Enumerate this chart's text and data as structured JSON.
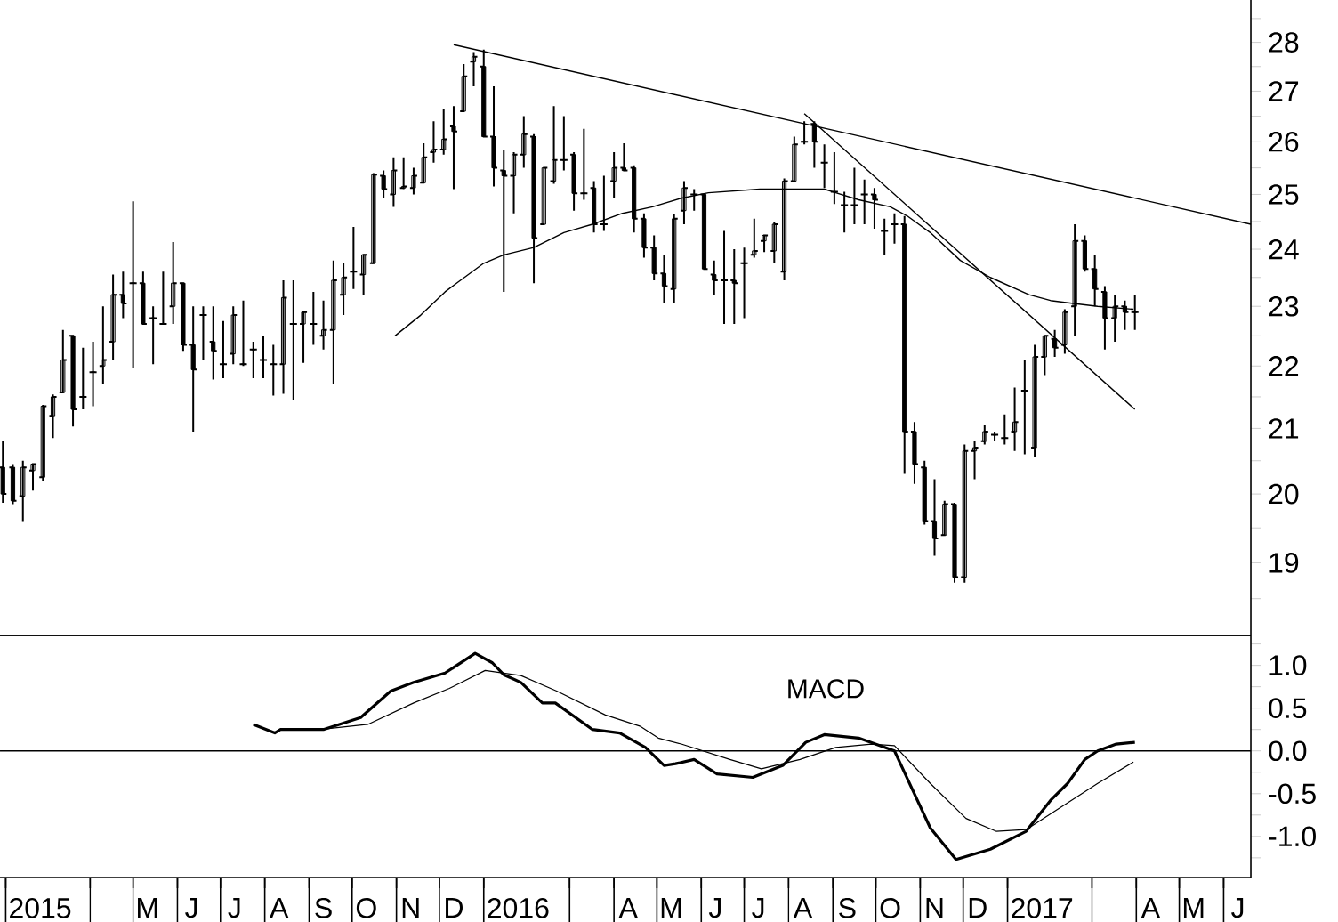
{
  "chart_data": [
    {
      "type": "candlestick",
      "color": "#000000",
      "log": "y",
      "tick_labels": "y",
      "xlim": [
        "2015-01-28",
        "2017-06-20"
      ],
      "ylim": [
        18.0,
        28.9
      ],
      "yticks": [
        {
          "value": 18.5,
          "label": null
        },
        19,
        {
          "value": 19.5,
          "label": null
        },
        20,
        {
          "value": 20.5,
          "label": null
        },
        21,
        {
          "value": 21.5,
          "label": null
        },
        22,
        {
          "value": 22.5,
          "label": null
        },
        23,
        {
          "value": 23.5,
          "label": null
        },
        24,
        {
          "value": 24.5,
          "label": null
        },
        25,
        {
          "value": 25.5,
          "label": null
        },
        26,
        {
          "value": 26.5,
          "label": null
        },
        27,
        {
          "value": 27.5,
          "label": null
        },
        28,
        {
          "value": 28.5,
          "label": null
        }
      ],
      "x": [
        "2015-01-30",
        "2015-02-06",
        "2015-02-13",
        "2015-02-20",
        "2015-02-27",
        "2015-03-06",
        "2015-03-13",
        "2015-03-20",
        "2015-03-27",
        "2015-04-03",
        "2015-04-10",
        "2015-04-17",
        "2015-04-24",
        "2015-05-01",
        "2015-05-08",
        "2015-05-15",
        "2015-05-22",
        "2015-05-29",
        "2015-06-05",
        "2015-06-12",
        "2015-06-19",
        "2015-06-26",
        "2015-07-03",
        "2015-07-10",
        "2015-07-17",
        "2015-07-24",
        "2015-07-31",
        "2015-08-07",
        "2015-08-14",
        "2015-08-21",
        "2015-08-28",
        "2015-09-04",
        "2015-09-11",
        "2015-09-18",
        "2015-09-25",
        "2015-10-02",
        "2015-10-09",
        "2015-10-16",
        "2015-10-23",
        "2015-10-30",
        "2015-11-06",
        "2015-11-13",
        "2015-11-20",
        "2015-11-27",
        "2015-12-04",
        "2015-12-11",
        "2015-12-18",
        "2015-12-25",
        "2016-01-01",
        "2016-01-08",
        "2016-01-15",
        "2016-01-22",
        "2016-01-29",
        "2016-02-05",
        "2016-02-12",
        "2016-02-19",
        "2016-02-26",
        "2016-03-04",
        "2016-03-11",
        "2016-03-18",
        "2016-03-25",
        "2016-04-01",
        "2016-04-08",
        "2016-04-15",
        "2016-04-22",
        "2016-04-29",
        "2016-05-06",
        "2016-05-13",
        "2016-05-20",
        "2016-05-27",
        "2016-06-03",
        "2016-06-10",
        "2016-06-17",
        "2016-06-24",
        "2016-07-01",
        "2016-07-08",
        "2016-07-15",
        "2016-07-22",
        "2016-07-29",
        "2016-08-05",
        "2016-08-12",
        "2016-08-19",
        "2016-08-26",
        "2016-09-02",
        "2016-09-09",
        "2016-09-16",
        "2016-09-23",
        "2016-09-30",
        "2016-10-07",
        "2016-10-14",
        "2016-10-21",
        "2016-10-28",
        "2016-11-04",
        "2016-11-11",
        "2016-11-18",
        "2016-11-25",
        "2016-12-02",
        "2016-12-09",
        "2016-12-16",
        "2016-12-23",
        "2016-12-30",
        "2017-01-06",
        "2017-01-13",
        "2017-01-20",
        "2017-01-27",
        "2017-02-03",
        "2017-02-10",
        "2017-02-17",
        "2017-02-24",
        "2017-03-03",
        "2017-03-10",
        "2017-03-17",
        "2017-03-24",
        "2017-03-31"
      ],
      "ohlc": [
        [
          20.4,
          20.8,
          19.87,
          20.0
        ],
        [
          20.4,
          20.45,
          19.85,
          19.9
        ],
        [
          19.97,
          20.5,
          19.6,
          20.4
        ],
        [
          20.35,
          20.45,
          20.05,
          20.45
        ],
        [
          20.25,
          21.37,
          20.2,
          21.35
        ],
        [
          21.2,
          21.54,
          20.85,
          21.5
        ],
        [
          21.57,
          22.6,
          21.57,
          22.1
        ],
        [
          22.5,
          22.5,
          21.03,
          21.3
        ],
        [
          21.5,
          22.3,
          21.3,
          21.5
        ],
        [
          21.9,
          22.4,
          21.35,
          21.9
        ],
        [
          22.0,
          23.0,
          21.7,
          22.1
        ],
        [
          22.4,
          23.55,
          22.1,
          23.2
        ],
        [
          23.2,
          23.6,
          22.8,
          23.05
        ],
        [
          23.4,
          24.87,
          21.97,
          23.4
        ],
        [
          23.4,
          23.6,
          22.7,
          22.7
        ],
        [
          22.8,
          23.0,
          22.03,
          22.8
        ],
        [
          22.7,
          23.6,
          22.7,
          22.7
        ],
        [
          23.0,
          24.13,
          22.7,
          23.4
        ],
        [
          23.4,
          23.4,
          22.25,
          22.35
        ],
        [
          22.35,
          23.0,
          20.95,
          21.94
        ],
        [
          22.85,
          23.0,
          22.1,
          22.85
        ],
        [
          22.4,
          23.0,
          21.78,
          22.25
        ],
        [
          22.03,
          22.75,
          21.8,
          22.03
        ],
        [
          22.2,
          23.0,
          22.03,
          22.85
        ],
        [
          22.03,
          23.1,
          22.0,
          22.03
        ],
        [
          22.27,
          22.4,
          21.8,
          22.27
        ],
        [
          22.1,
          22.5,
          21.8,
          22.1
        ],
        [
          22.03,
          22.35,
          21.52,
          22.03
        ],
        [
          22.03,
          23.45,
          21.55,
          23.15
        ],
        [
          22.7,
          23.45,
          21.45,
          22.7
        ],
        [
          22.7,
          22.9,
          22.05,
          22.9
        ],
        [
          22.7,
          23.25,
          22.35,
          22.7
        ],
        [
          22.5,
          23.1,
          22.27,
          22.6
        ],
        [
          22.6,
          23.8,
          21.7,
          23.45
        ],
        [
          23.2,
          23.75,
          22.85,
          23.5
        ],
        [
          23.6,
          24.4,
          23.3,
          23.6
        ],
        [
          23.55,
          23.9,
          23.2,
          23.9
        ],
        [
          23.75,
          25.4,
          23.75,
          25.37
        ],
        [
          25.35,
          25.45,
          24.93,
          25.1
        ],
        [
          25.0,
          25.7,
          24.77,
          25.45
        ],
        [
          25.12,
          25.7,
          25.1,
          25.15
        ],
        [
          25.12,
          25.5,
          25.0,
          25.35
        ],
        [
          25.22,
          25.97,
          25.22,
          25.7
        ],
        [
          25.8,
          26.4,
          25.6,
          25.85
        ],
        [
          25.85,
          26.65,
          25.75,
          26.05
        ],
        [
          26.3,
          26.7,
          25.1,
          26.2
        ],
        [
          26.6,
          27.55,
          26.6,
          27.3
        ],
        [
          27.6,
          27.8,
          27.1,
          27.7
        ],
        [
          27.5,
          27.85,
          26.1,
          26.1
        ],
        [
          26.1,
          27.1,
          25.15,
          25.5
        ],
        [
          25.45,
          25.85,
          23.25,
          25.35
        ],
        [
          25.35,
          25.8,
          24.65,
          25.75
        ],
        [
          25.75,
          26.5,
          25.5,
          26.15
        ],
        [
          26.1,
          26.15,
          23.4,
          24.2
        ],
        [
          24.45,
          25.5,
          24.45,
          25.5
        ],
        [
          25.25,
          26.7,
          25.2,
          25.65
        ],
        [
          25.65,
          26.5,
          25.45,
          25.65
        ],
        [
          25.75,
          25.8,
          24.7,
          25.02
        ],
        [
          25.02,
          26.25,
          24.9,
          25.02
        ],
        [
          25.12,
          25.25,
          24.3,
          24.45
        ],
        [
          24.45,
          25.35,
          24.33,
          24.45
        ],
        [
          25.25,
          25.8,
          24.93,
          25.5
        ],
        [
          25.5,
          25.97,
          25.45,
          25.45
        ],
        [
          25.5,
          25.55,
          24.3,
          24.55
        ],
        [
          24.55,
          24.65,
          23.85,
          24.03
        ],
        [
          24.03,
          24.25,
          23.45,
          23.57
        ],
        [
          23.57,
          23.9,
          23.05,
          23.35
        ],
        [
          23.3,
          24.63,
          23.05,
          24.55
        ],
        [
          24.7,
          25.25,
          24.45,
          25.12
        ],
        [
          25.0,
          25.1,
          24.7,
          25.0
        ],
        [
          25.0,
          25.0,
          23.65,
          23.65
        ],
        [
          23.55,
          23.8,
          23.2,
          23.45
        ],
        [
          23.45,
          24.33,
          22.7,
          23.45
        ],
        [
          23.45,
          24.0,
          22.7,
          23.4
        ],
        [
          23.75,
          24.03,
          22.8,
          23.75
        ],
        [
          23.9,
          24.55,
          23.85,
          23.97
        ],
        [
          24.15,
          24.25,
          23.95,
          24.25
        ],
        [
          23.97,
          24.5,
          23.75,
          24.45
        ],
        [
          23.6,
          25.3,
          23.45,
          25.25
        ],
        [
          25.25,
          26.1,
          25.25,
          25.95
        ],
        [
          26.0,
          26.4,
          25.95,
          26.0
        ],
        [
          26.35,
          26.4,
          25.5,
          26.0
        ],
        [
          25.6,
          25.95,
          25.12,
          25.6
        ],
        [
          25.05,
          25.8,
          24.82,
          25.05
        ],
        [
          24.8,
          25.05,
          24.3,
          24.8
        ],
        [
          24.8,
          25.5,
          24.45,
          24.8
        ],
        [
          25.0,
          25.28,
          24.45,
          25.0
        ],
        [
          25.0,
          25.12,
          24.37,
          24.9
        ],
        [
          24.33,
          24.55,
          23.9,
          24.33
        ],
        [
          24.45,
          24.65,
          24.1,
          24.45
        ],
        [
          24.45,
          24.6,
          20.3,
          20.95
        ],
        [
          20.95,
          21.1,
          20.15,
          20.45
        ],
        [
          20.4,
          20.5,
          19.55,
          19.6
        ],
        [
          19.6,
          20.22,
          19.1,
          19.35
        ],
        [
          19.4,
          19.9,
          19.4,
          19.85
        ],
        [
          19.85,
          19.87,
          18.72,
          18.8
        ],
        [
          18.8,
          20.75,
          18.72,
          20.65
        ],
        [
          20.65,
          20.8,
          20.22,
          20.7
        ],
        [
          20.8,
          21.05,
          20.75,
          20.95
        ],
        [
          20.9,
          20.95,
          20.8,
          20.9
        ],
        [
          20.85,
          21.22,
          20.75,
          20.85
        ],
        [
          20.95,
          21.65,
          20.65,
          21.1
        ],
        [
          21.6,
          22.1,
          20.6,
          21.6
        ],
        [
          20.7,
          22.35,
          20.55,
          22.15
        ],
        [
          22.15,
          22.5,
          21.85,
          22.5
        ],
        [
          22.45,
          22.6,
          22.15,
          22.3
        ],
        [
          22.35,
          22.95,
          22.2,
          22.9
        ],
        [
          23.0,
          24.45,
          22.5,
          24.15
        ],
        [
          24.15,
          24.25,
          23.6,
          23.65
        ],
        [
          23.65,
          23.9,
          23.0,
          23.3
        ],
        [
          23.25,
          23.35,
          22.27,
          22.8
        ],
        [
          22.8,
          23.2,
          22.4,
          23.0
        ],
        [
          23.0,
          23.1,
          22.6,
          22.9
        ],
        [
          22.9,
          23.2,
          22.6,
          22.9
        ]
      ],
      "series": [
        {
          "type": "line",
          "color": "#000000",
          "x": [
            "2015-10-31",
            "2015-11-18",
            "2015-12-05",
            "2015-12-13",
            "2016-01-01",
            "2016-01-15",
            "2016-02-05",
            "2016-02-26",
            "2016-03-17",
            "2016-04-07",
            "2016-04-28",
            "2016-05-18",
            "2016-06-06",
            "2016-07-12",
            "2016-08-09",
            "2016-08-26",
            "2016-09-03",
            "2016-09-19",
            "2016-10-11",
            "2016-10-23",
            "2016-11-08",
            "2016-11-29",
            "2016-12-20",
            "2017-01-16",
            "2017-01-31",
            "2017-02-16",
            "2017-03-05",
            "2017-03-30"
          ],
          "values": [
            22.5,
            22.85,
            23.25,
            23.4,
            23.75,
            23.9,
            24.03,
            24.3,
            24.45,
            24.65,
            24.77,
            24.93,
            25.03,
            25.1,
            25.1,
            25.1,
            25.03,
            24.9,
            24.77,
            24.6,
            24.3,
            23.8,
            23.5,
            23.2,
            23.1,
            23.05,
            23.0,
            22.95
          ]
        },
        {
          "type": "line",
          "color": "#000000",
          "x": [
            "2015-12-11",
            "2017-06-20"
          ],
          "values": [
            27.95,
            24.45
          ]
        },
        {
          "type": "line",
          "color": "#000000",
          "x": [
            "2016-08-12",
            "2017-03-31"
          ],
          "values": [
            26.55,
            21.3
          ]
        }
      ]
    },
    {
      "type": "line",
      "xlim": [
        "2015-01-28",
        "2017-06-20"
      ],
      "ylim": [
        -1.48,
        1.35
      ],
      "yticks": [
        {
          "value": -1.25,
          "label": null
        },
        {
          "value": -1,
          "label": "-1.0"
        },
        {
          "value": -0.75,
          "label": null
        },
        -0.5,
        {
          "value": -0.25,
          "label": null
        },
        {
          "value": 0,
          "label": "0.0"
        },
        {
          "value": 0.25,
          "label": null
        },
        0.5,
        {
          "value": 0.75,
          "label": null
        },
        {
          "value": 1,
          "label": "1.0"
        },
        {
          "value": 1.25,
          "label": null
        }
      ],
      "xticks": [
        {
          "value": "2015-02-01",
          "label": null
        },
        {
          "value": "2015-02-25",
          "label": "2015"
        },
        {
          "value": "2015-04-01",
          "label": null
        },
        {
          "value": "2015-05-01",
          "label": null
        },
        {
          "value": "2015-05-11",
          "label": "M"
        },
        {
          "value": "2015-06-01",
          "label": null
        },
        {
          "value": "2015-06-11",
          "label": "J"
        },
        {
          "value": "2015-07-01",
          "label": null
        },
        {
          "value": "2015-07-11",
          "label": "J"
        },
        {
          "value": "2015-08-01",
          "label": null
        },
        {
          "value": "2015-08-11",
          "label": "A"
        },
        {
          "value": "2015-09-01",
          "label": null
        },
        {
          "value": "2015-09-11",
          "label": "S"
        },
        {
          "value": "2015-10-01",
          "label": null
        },
        {
          "value": "2015-10-11",
          "label": "O"
        },
        {
          "value": "2015-11-01",
          "label": null
        },
        {
          "value": "2015-11-11",
          "label": "N"
        },
        {
          "value": "2015-12-01",
          "label": null
        },
        {
          "value": "2015-12-11",
          "label": "D"
        },
        {
          "value": "2016-01-01",
          "label": null
        },
        {
          "value": "2016-01-25",
          "label": "2016"
        },
        {
          "value": "2016-03-01",
          "label": null
        },
        {
          "value": "2016-04-01",
          "label": null
        },
        {
          "value": "2016-04-11",
          "label": "A"
        },
        {
          "value": "2016-05-01",
          "label": null
        },
        {
          "value": "2016-05-11",
          "label": "M"
        },
        {
          "value": "2016-06-01",
          "label": null
        },
        {
          "value": "2016-06-11",
          "label": "J"
        },
        {
          "value": "2016-07-01",
          "label": null
        },
        {
          "value": "2016-07-11",
          "label": "J"
        },
        {
          "value": "2016-08-01",
          "label": null
        },
        {
          "value": "2016-08-11",
          "label": "A"
        },
        {
          "value": "2016-09-01",
          "label": null
        },
        {
          "value": "2016-09-11",
          "label": "S"
        },
        {
          "value": "2016-10-01",
          "label": null
        },
        {
          "value": "2016-10-11",
          "label": "O"
        },
        {
          "value": "2016-11-01",
          "label": null
        },
        {
          "value": "2016-11-11",
          "label": "N"
        },
        {
          "value": "2016-12-01",
          "label": null
        },
        {
          "value": "2016-12-11",
          "label": "D"
        },
        {
          "value": "2017-01-01",
          "label": null
        },
        {
          "value": "2017-01-25",
          "label": "2017"
        },
        {
          "value": "2017-03-01",
          "label": null
        },
        {
          "value": "2017-04-01",
          "label": null
        },
        {
          "value": "2017-04-11",
          "label": "A"
        },
        {
          "value": "2017-05-01",
          "label": null
        },
        {
          "value": "2017-05-11",
          "label": "M"
        },
        {
          "value": "2017-06-01",
          "label": null
        },
        {
          "value": "2017-06-11",
          "label": "J"
        }
      ],
      "ref_lines": [
        {
          "axis": "y",
          "value": 0,
          "color": "#000000"
        }
      ],
      "annotations": [
        "MACD"
      ],
      "series": [
        {
          "color": "#000000",
          "x": [
            "2015-07-24",
            "2015-08-08",
            "2015-08-12",
            "2015-09-11",
            "2015-10-07",
            "2015-10-28",
            "2015-11-13",
            "2015-12-05",
            "2015-12-26",
            "2016-01-07",
            "2016-01-15",
            "2016-01-27",
            "2016-02-11",
            "2016-02-20",
            "2016-03-17",
            "2016-04-05",
            "2016-04-23",
            "2016-05-06",
            "2016-05-14",
            "2016-05-27",
            "2016-06-12",
            "2016-07-07",
            "2016-07-28",
            "2016-08-13",
            "2016-08-26",
            "2016-09-19",
            "2016-10-14",
            "2016-11-08",
            "2016-11-26",
            "2016-12-20",
            "2017-01-14",
            "2017-01-31",
            "2017-02-12",
            "2017-02-24",
            "2017-03-05",
            "2017-03-18",
            "2017-03-31"
          ],
          "values": [
            0.31,
            0.21,
            0.25,
            0.25,
            0.39,
            0.7,
            0.8,
            0.91,
            1.14,
            1.03,
            0.89,
            0.8,
            0.56,
            0.56,
            0.25,
            0.21,
            0.04,
            -0.17,
            -0.15,
            -0.1,
            -0.27,
            -0.31,
            -0.17,
            0.1,
            0.19,
            0.15,
            0.0,
            -0.9,
            -1.27,
            -1.15,
            -0.94,
            -0.58,
            -0.38,
            -0.1,
            0.0,
            0.08,
            0.1
          ]
        },
        {
          "color": "#000000",
          "x": [
            "2015-09-09",
            "2015-10-12",
            "2015-11-13",
            "2015-12-08",
            "2016-01-02",
            "2016-01-27",
            "2016-02-21",
            "2016-03-26",
            "2016-04-19",
            "2016-05-02",
            "2016-05-18",
            "2016-06-21",
            "2016-07-13",
            "2016-08-09",
            "2016-09-03",
            "2016-09-28",
            "2016-10-14",
            "2016-11-08",
            "2016-12-03",
            "2016-12-24",
            "2017-01-14",
            "2017-02-08",
            "2017-03-05",
            "2017-03-30"
          ],
          "values": [
            0.25,
            0.31,
            0.56,
            0.73,
            0.94,
            0.88,
            0.7,
            0.42,
            0.29,
            0.15,
            0.08,
            -0.1,
            -0.21,
            -0.1,
            0.04,
            0.08,
            0.06,
            -0.38,
            -0.79,
            -0.94,
            -0.92,
            -0.65,
            -0.38,
            -0.13
          ]
        }
      ]
    }
  ]
}
